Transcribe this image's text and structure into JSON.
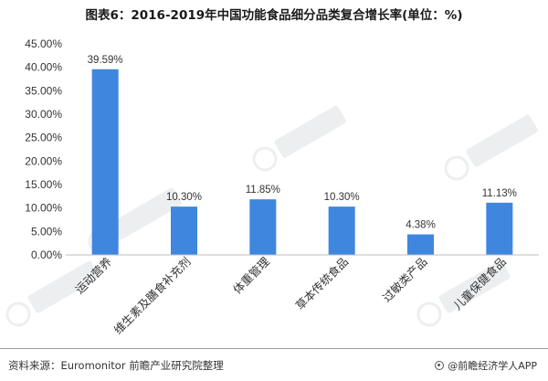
{
  "title": "图表6：2016-2019年中国功能食品细分品类复合增长率(单位：%)",
  "footer": {
    "source": "资料来源：Euromonitor 前瞻产业研究院整理",
    "brand": "@前瞻经济学人APP"
  },
  "colors": {
    "bar": "#3f86df",
    "axis": "#bfbfbf"
  },
  "chart_data": {
    "type": "bar",
    "title": "图表6：2016-2019年中国功能食品细分品类复合增长率(单位：%)",
    "xlabel": "",
    "ylabel": "",
    "ylim": [
      0,
      45
    ],
    "yticks": [
      0,
      5,
      10,
      15,
      20,
      25,
      30,
      35,
      40,
      45
    ],
    "ytick_labels": [
      "0.00%",
      "5.00%",
      "10.00%",
      "15.00%",
      "20.00%",
      "25.00%",
      "30.00%",
      "35.00%",
      "40.00%",
      "45.00%"
    ],
    "grid": false,
    "legend": "none",
    "categories": [
      "运动营养",
      "维生素及膳食补充剂",
      "体重管理",
      "草本传统食品",
      "过敏类产品",
      "儿童保健食品"
    ],
    "values": [
      39.59,
      10.3,
      11.85,
      10.3,
      4.38,
      11.13
    ],
    "data_labels": [
      "39.59%",
      "10.30%",
      "11.85%",
      "10.30%",
      "4.38%",
      "11.13%"
    ]
  }
}
